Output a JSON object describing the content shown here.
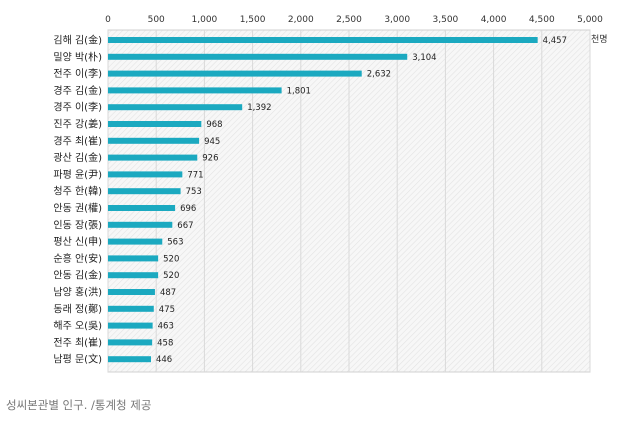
{
  "chart_data": {
    "type": "bar",
    "orientation": "horizontal",
    "categories": [
      "김해 김(金)",
      "밀양 박(朴)",
      "전주 이(李)",
      "경주 김(金)",
      "경주 이(李)",
      "진주 강(姜)",
      "경주 최(崔)",
      "광산 김(金)",
      "파평 윤(尹)",
      "청주 한(韓)",
      "안동 권(權)",
      "인동 장(張)",
      "평산 신(申)",
      "순흥 안(安)",
      "안동 김(金)",
      "남양 홍(洪)",
      "동래 정(鄭)",
      "해주 오(吳)",
      "전주 최(崔)",
      "남평 문(文)"
    ],
    "values": [
      4457,
      3104,
      2632,
      1801,
      1392,
      968,
      945,
      926,
      771,
      753,
      696,
      667,
      563,
      520,
      520,
      487,
      475,
      463,
      458,
      446
    ],
    "value_labels": [
      "4,457",
      "3,104",
      "2,632",
      "1,801",
      "1,392",
      "968",
      "945",
      "926",
      "771",
      "753",
      "696",
      "667",
      "563",
      "520",
      "520",
      "487",
      "475",
      "463",
      "458",
      "446"
    ],
    "ticks": [
      0,
      500,
      1000,
      1500,
      2000,
      2500,
      3000,
      3500,
      4000,
      4500,
      5000
    ],
    "tick_labels": [
      "0",
      "500",
      "1,000",
      "1,500",
      "2,000",
      "2,500",
      "3,000",
      "3,500",
      "4,000",
      "4,500",
      "5,000"
    ],
    "xlim": [
      0,
      5000
    ],
    "unit": "천명",
    "axis_position": "top",
    "grid": true,
    "bar_color": "#1ba9c0"
  },
  "caption": "성씨본관별 인구. /통계청 제공"
}
